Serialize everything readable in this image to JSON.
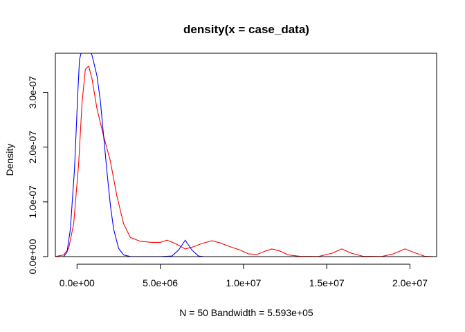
{
  "chart_data": {
    "type": "line",
    "title": "density(x = case_data)",
    "xlabel": "N = 50   Bandwidth = 5.593e+05",
    "ylabel": "Density",
    "xlim": [
      -1300000,
      21600000
    ],
    "ylim": [
      -1e-08,
      3.55e-07
    ],
    "x_ticks": [
      {
        "value": 0,
        "label": "0.0e+00"
      },
      {
        "value": 5000000,
        "label": "5.0e+06"
      },
      {
        "value": 10000000,
        "label": "1.0e+07"
      },
      {
        "value": 15000000,
        "label": "1.5e+07"
      },
      {
        "value": 20000000,
        "label": "2.0e+07"
      }
    ],
    "y_ticks": [
      {
        "value": 0,
        "label": "0.0e+00"
      },
      {
        "value": 1e-07,
        "label": "1.0e-07"
      },
      {
        "value": 2e-07,
        "label": "2.0e-07"
      },
      {
        "value": 3e-07,
        "label": "3.0e-07"
      }
    ],
    "zero_line": true,
    "grid": false,
    "series": [
      {
        "color": "#ff0000",
        "points": [
          [
            -1300000,
            2e-10
          ],
          [
            -800000,
            3e-09
          ],
          [
            -500000,
            1.5e-08
          ],
          [
            -200000,
            6e-08
          ],
          [
            100000,
            1.7e-07
          ],
          [
            300000,
            2.8e-07
          ],
          [
            500000,
            3.42e-07
          ],
          [
            700000,
            3.48e-07
          ],
          [
            900000,
            3.25e-07
          ],
          [
            1200000,
            2.7e-07
          ],
          [
            1600000,
            2.2e-07
          ],
          [
            2000000,
            1.75e-07
          ],
          [
            2400000,
            1.1e-07
          ],
          [
            2800000,
            6e-08
          ],
          [
            3200000,
            3.5e-08
          ],
          [
            3800000,
            2.8e-08
          ],
          [
            4500000,
            2.6e-08
          ],
          [
            5000000,
            2.6e-08
          ],
          [
            5400000,
            3e-08
          ],
          [
            5900000,
            2.4e-08
          ],
          [
            6500000,
            1.4e-08
          ],
          [
            7000000,
            1.8e-08
          ],
          [
            7500000,
            2.4e-08
          ],
          [
            8100000,
            2.9e-08
          ],
          [
            8600000,
            2.5e-08
          ],
          [
            9200000,
            1.8e-08
          ],
          [
            9800000,
            1.2e-08
          ],
          [
            10300000,
            5e-09
          ],
          [
            10800000,
            4e-09
          ],
          [
            11300000,
            1e-08
          ],
          [
            11700000,
            1.4e-08
          ],
          [
            12200000,
            1e-08
          ],
          [
            12700000,
            3e-09
          ],
          [
            13400000,
            5e-10
          ],
          [
            14500000,
            3e-10
          ],
          [
            15300000,
            6e-09
          ],
          [
            15900000,
            1.4e-08
          ],
          [
            16500000,
            6e-09
          ],
          [
            17200000,
            5e-10
          ],
          [
            18300000,
            3e-10
          ],
          [
            19000000,
            5e-09
          ],
          [
            19700000,
            1.4e-08
          ],
          [
            20300000,
            7e-09
          ],
          [
            20900000,
            5e-10
          ],
          [
            21400000,
            5e-11
          ]
        ]
      },
      {
        "color": "#0000ff",
        "points": [
          [
            -800000,
            5e-11
          ],
          [
            -600000,
            8e-09
          ],
          [
            -400000,
            5e-08
          ],
          [
            -150000,
            1.6e-07
          ],
          [
            50000,
            3e-07
          ],
          [
            150000,
            3.6e-07
          ],
          [
            400000,
            3.9e-07
          ],
          [
            700000,
            3.9e-07
          ],
          [
            950000,
            3.62e-07
          ],
          [
            1200000,
            3.3e-07
          ],
          [
            1400000,
            2.85e-07
          ],
          [
            1600000,
            2.2e-07
          ],
          [
            1800000,
            1.55e-07
          ],
          [
            2000000,
            9.5e-08
          ],
          [
            2200000,
            5e-08
          ],
          [
            2500000,
            1.5e-08
          ],
          [
            2800000,
            3e-09
          ],
          [
            3200000,
            3e-10
          ],
          [
            5000000,
            5e-11
          ],
          [
            5700000,
            1e-09
          ],
          [
            6100000,
            1.2e-08
          ],
          [
            6500000,
            3e-08
          ],
          [
            6900000,
            1.2e-08
          ],
          [
            7300000,
            1e-09
          ],
          [
            7600000,
            2e-11
          ]
        ]
      }
    ]
  }
}
